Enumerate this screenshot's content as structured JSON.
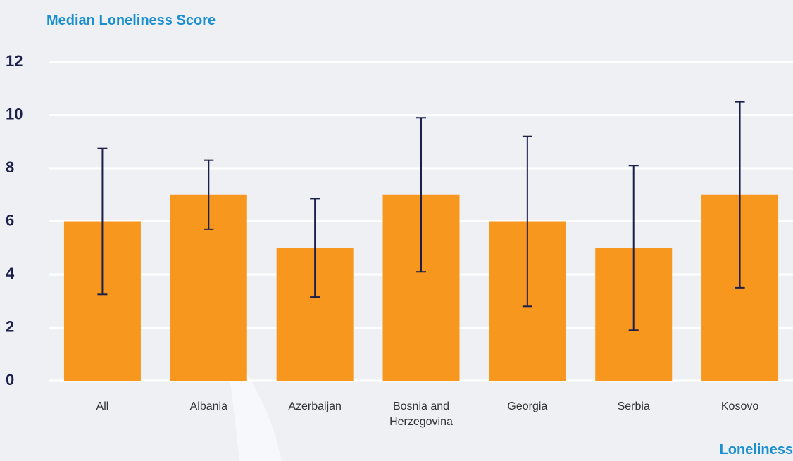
{
  "chart_data": {
    "type": "bar",
    "title": "Median Loneliness Score",
    "footer": "Loneliness",
    "categories": [
      "All",
      "Albania",
      "Azerbaijan",
      "Bosnia and Herzegovina",
      "Georgia",
      "Serbia",
      "Kosovo"
    ],
    "values": [
      6,
      7,
      5,
      7,
      6,
      5,
      7
    ],
    "errors": [
      2.75,
      1.3,
      1.85,
      2.9,
      3.2,
      3.1,
      3.5
    ],
    "color": "#f7971e",
    "error_color": "#1b1f4a",
    "ylim": [
      0,
      12
    ],
    "yticks": [
      0,
      2,
      4,
      6,
      8,
      10,
      12
    ],
    "grid": true
  }
}
